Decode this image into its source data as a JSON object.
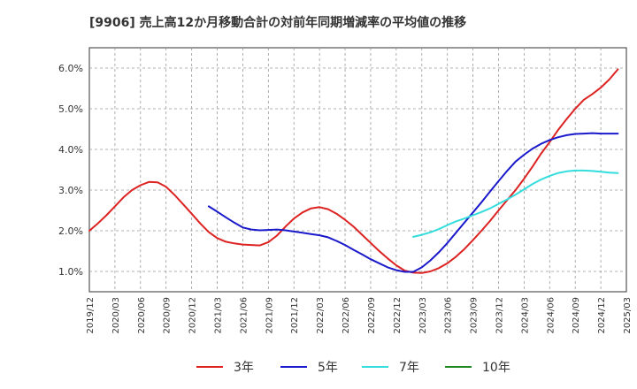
{
  "chart_data": {
    "type": "line",
    "title": "[9906]  売上高12か月移動合計の対前年同期増減率の平均値の推移",
    "xlabel": "",
    "ylabel": "",
    "x_ticks": [
      "2019/12",
      "2020/03",
      "2020/06",
      "2020/09",
      "2020/12",
      "2021/03",
      "2021/06",
      "2021/09",
      "2021/12",
      "2022/03",
      "2022/06",
      "2022/09",
      "2022/12",
      "2023/03",
      "2023/06",
      "2023/09",
      "2023/12",
      "2024/03",
      "2024/06",
      "2024/09",
      "2024/12",
      "2025/03"
    ],
    "y_ticks": [
      "1.0%",
      "2.0%",
      "3.0%",
      "4.0%",
      "5.0%",
      "6.0%"
    ],
    "ylim": [
      0.5,
      6.5
    ],
    "grid": true,
    "legend_position": "bottom",
    "series": [
      {
        "name": "3年",
        "color": "#dd2222",
        "points": [
          [
            "2019/12",
            2.0
          ],
          [
            "2020/01",
            2.18
          ],
          [
            "2020/02",
            2.38
          ],
          [
            "2020/03",
            2.6
          ],
          [
            "2020/04",
            2.82
          ],
          [
            "2020/05",
            3.0
          ],
          [
            "2020/06",
            3.12
          ],
          [
            "2020/07",
            3.2
          ],
          [
            "2020/08",
            3.19
          ],
          [
            "2020/09",
            3.08
          ],
          [
            "2020/10",
            2.88
          ],
          [
            "2020/11",
            2.65
          ],
          [
            "2020/12",
            2.42
          ],
          [
            "2021/01",
            2.18
          ],
          [
            "2021/02",
            1.97
          ],
          [
            "2021/03",
            1.82
          ],
          [
            "2021/04",
            1.73
          ],
          [
            "2021/05",
            1.69
          ],
          [
            "2021/06",
            1.66
          ],
          [
            "2021/07",
            1.65
          ],
          [
            "2021/08",
            1.64
          ],
          [
            "2021/09",
            1.72
          ],
          [
            "2021/10",
            1.88
          ],
          [
            "2021/11",
            2.1
          ],
          [
            "2021/12",
            2.3
          ],
          [
            "2022/01",
            2.45
          ],
          [
            "2022/02",
            2.55
          ],
          [
            "2022/03",
            2.58
          ],
          [
            "2022/04",
            2.53
          ],
          [
            "2022/05",
            2.42
          ],
          [
            "2022/06",
            2.27
          ],
          [
            "2022/07",
            2.1
          ],
          [
            "2022/08",
            1.9
          ],
          [
            "2022/09",
            1.7
          ],
          [
            "2022/10",
            1.5
          ],
          [
            "2022/11",
            1.32
          ],
          [
            "2022/12",
            1.15
          ],
          [
            "2023/01",
            1.02
          ],
          [
            "2023/02",
            0.97
          ],
          [
            "2023/03",
            0.96
          ],
          [
            "2023/04",
            1.0
          ],
          [
            "2023/05",
            1.08
          ],
          [
            "2023/06",
            1.2
          ],
          [
            "2023/07",
            1.36
          ],
          [
            "2023/08",
            1.55
          ],
          [
            "2023/09",
            1.77
          ],
          [
            "2023/10",
            2.0
          ],
          [
            "2023/11",
            2.24
          ],
          [
            "2023/12",
            2.5
          ],
          [
            "2024/01",
            2.75
          ],
          [
            "2024/02",
            3.0
          ],
          [
            "2024/03",
            3.28
          ],
          [
            "2024/04",
            3.58
          ],
          [
            "2024/05",
            3.9
          ],
          [
            "2024/06",
            4.18
          ],
          [
            "2024/07",
            4.48
          ],
          [
            "2024/08",
            4.75
          ],
          [
            "2024/09",
            5.0
          ],
          [
            "2024/10",
            5.22
          ],
          [
            "2024/11",
            5.36
          ],
          [
            "2024/12",
            5.52
          ],
          [
            "2025/01",
            5.72
          ],
          [
            "2025/02",
            5.97
          ]
        ]
      },
      {
        "name": "5年",
        "color": "#1a1acc",
        "points": [
          [
            "2021/02",
            2.6
          ],
          [
            "2021/03",
            2.47
          ],
          [
            "2021/04",
            2.33
          ],
          [
            "2021/05",
            2.2
          ],
          [
            "2021/06",
            2.08
          ],
          [
            "2021/07",
            2.03
          ],
          [
            "2021/08",
            2.01
          ],
          [
            "2021/09",
            2.02
          ],
          [
            "2021/10",
            2.03
          ],
          [
            "2021/11",
            2.01
          ],
          [
            "2021/12",
            1.98
          ],
          [
            "2022/01",
            1.95
          ],
          [
            "2022/02",
            1.92
          ],
          [
            "2022/03",
            1.89
          ],
          [
            "2022/04",
            1.84
          ],
          [
            "2022/05",
            1.75
          ],
          [
            "2022/06",
            1.65
          ],
          [
            "2022/07",
            1.53
          ],
          [
            "2022/08",
            1.42
          ],
          [
            "2022/09",
            1.3
          ],
          [
            "2022/10",
            1.2
          ],
          [
            "2022/11",
            1.1
          ],
          [
            "2022/12",
            1.03
          ],
          [
            "2023/01",
            0.99
          ],
          [
            "2023/02",
            0.99
          ],
          [
            "2023/03",
            1.1
          ],
          [
            "2023/04",
            1.27
          ],
          [
            "2023/05",
            1.47
          ],
          [
            "2023/06",
            1.7
          ],
          [
            "2023/07",
            1.95
          ],
          [
            "2023/08",
            2.2
          ],
          [
            "2023/09",
            2.45
          ],
          [
            "2023/10",
            2.7
          ],
          [
            "2023/11",
            2.96
          ],
          [
            "2023/12",
            3.22
          ],
          [
            "2024/01",
            3.47
          ],
          [
            "2024/02",
            3.7
          ],
          [
            "2024/03",
            3.87
          ],
          [
            "2024/04",
            4.02
          ],
          [
            "2024/05",
            4.14
          ],
          [
            "2024/06",
            4.23
          ],
          [
            "2024/07",
            4.3
          ],
          [
            "2024/08",
            4.35
          ],
          [
            "2024/09",
            4.38
          ],
          [
            "2024/10",
            4.39
          ],
          [
            "2024/11",
            4.4
          ],
          [
            "2024/12",
            4.39
          ],
          [
            "2025/01",
            4.39
          ],
          [
            "2025/02",
            4.39
          ]
        ]
      },
      {
        "name": "7年",
        "color": "#33dddd",
        "points": [
          [
            "2023/02",
            1.85
          ],
          [
            "2023/03",
            1.9
          ],
          [
            "2023/04",
            1.96
          ],
          [
            "2023/05",
            2.04
          ],
          [
            "2023/06",
            2.14
          ],
          [
            "2023/07",
            2.23
          ],
          [
            "2023/08",
            2.3
          ],
          [
            "2023/09",
            2.38
          ],
          [
            "2023/10",
            2.46
          ],
          [
            "2023/11",
            2.55
          ],
          [
            "2023/12",
            2.66
          ],
          [
            "2024/01",
            2.77
          ],
          [
            "2024/02",
            2.89
          ],
          [
            "2024/03",
            3.02
          ],
          [
            "2024/04",
            3.15
          ],
          [
            "2024/05",
            3.26
          ],
          [
            "2024/06",
            3.35
          ],
          [
            "2024/07",
            3.42
          ],
          [
            "2024/08",
            3.46
          ],
          [
            "2024/09",
            3.48
          ],
          [
            "2024/10",
            3.48
          ],
          [
            "2024/11",
            3.47
          ],
          [
            "2024/12",
            3.45
          ],
          [
            "2025/01",
            3.43
          ],
          [
            "2025/02",
            3.42
          ]
        ]
      },
      {
        "name": "10年",
        "color": "#228822",
        "points": []
      }
    ]
  }
}
